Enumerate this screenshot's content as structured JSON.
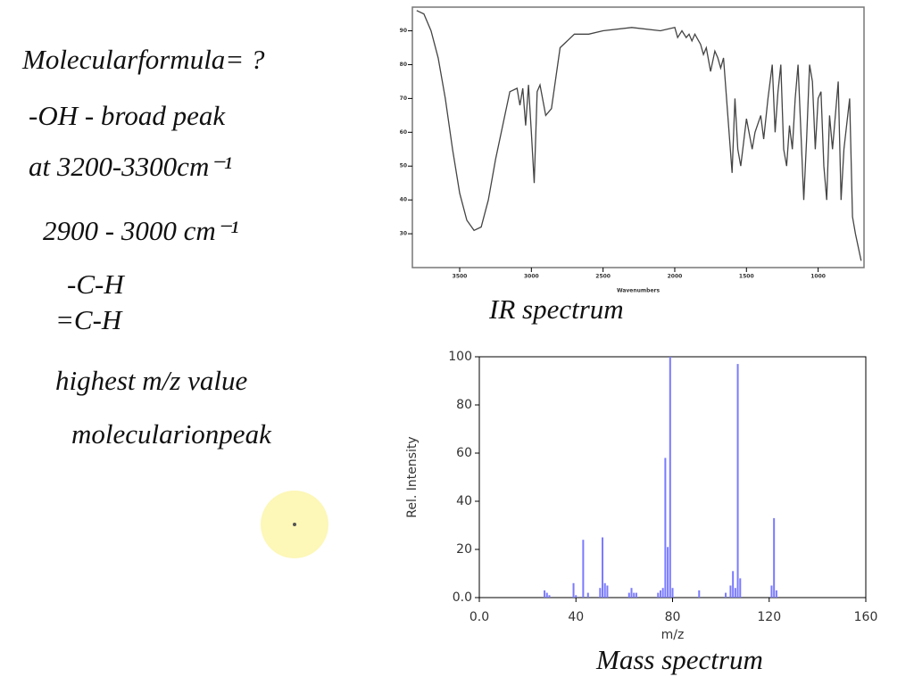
{
  "notes": [
    "Molecularformula= ?",
    "-OH - broad peak",
    "at 3200-3300cm⁻¹",
    "2900 - 3000 cm⁻¹",
    "-C-H",
    "=C-H",
    "highest m/z value",
    "molecularionpeak"
  ],
  "chart_data": [
    {
      "type": "line",
      "caption": "IR spectrum",
      "x_label": "Wavenumbers",
      "color": "#444444",
      "x": [
        3800,
        3750,
        3700,
        3650,
        3600,
        3550,
        3500,
        3450,
        3400,
        3350,
        3300,
        3250,
        3200,
        3150,
        3100,
        3080,
        3060,
        3040,
        3020,
        3000,
        2980,
        2960,
        2940,
        2900,
        2860,
        2800,
        2700,
        2600,
        2500,
        2300,
        2100,
        2000,
        1980,
        1950,
        1920,
        1900,
        1880,
        1860,
        1820,
        1800,
        1780,
        1750,
        1720,
        1700,
        1680,
        1660,
        1600,
        1580,
        1560,
        1540,
        1500,
        1460,
        1440,
        1400,
        1380,
        1350,
        1320,
        1300,
        1280,
        1260,
        1240,
        1220,
        1200,
        1180,
        1160,
        1140,
        1120,
        1100,
        1080,
        1060,
        1040,
        1020,
        1000,
        980,
        960,
        940,
        920,
        900,
        860,
        840,
        820,
        780,
        760,
        740,
        700
      ],
      "values": [
        96,
        95,
        90,
        82,
        70,
        55,
        42,
        34,
        31,
        32,
        40,
        52,
        62,
        72,
        73,
        68,
        73,
        62,
        74,
        60,
        45,
        72,
        74,
        65,
        67,
        85,
        89,
        89,
        90,
        91,
        90,
        91,
        88,
        90,
        88,
        89,
        87,
        89,
        86,
        83,
        85,
        78,
        84,
        82,
        79,
        82,
        48,
        70,
        55,
        50,
        64,
        55,
        60,
        65,
        58,
        70,
        80,
        60,
        72,
        80,
        55,
        50,
        62,
        55,
        70,
        80,
        60,
        40,
        58,
        80,
        75,
        55,
        70,
        72,
        50,
        40,
        65,
        55,
        75,
        40,
        55,
        70,
        35,
        30,
        22
      ],
      "xlim": [
        3830,
        680
      ],
      "xticks": [
        3500,
        3000,
        2500,
        2000,
        1500,
        1000
      ],
      "ylim": [
        20,
        97
      ],
      "yticks": [
        30,
        40,
        50,
        60,
        70,
        80,
        90
      ]
    },
    {
      "type": "bar",
      "caption": "Mass spectrum",
      "x_label": "m/z",
      "y_label": "Rel. Intensity",
      "color": "#7a7aff",
      "x": [
        27,
        28,
        29,
        39,
        40,
        43,
        45,
        50,
        51,
        52,
        53,
        62,
        63,
        64,
        65,
        74,
        75,
        76,
        77,
        78,
        79,
        80,
        91,
        102,
        104,
        105,
        106,
        107,
        108,
        121,
        122,
        123
      ],
      "values": [
        3,
        2,
        1,
        6,
        1,
        24,
        2,
        4,
        25,
        6,
        5,
        2,
        4,
        2,
        2,
        2,
        3,
        4,
        58,
        21,
        100,
        4,
        3,
        2,
        5,
        11,
        4,
        97,
        8,
        5,
        33,
        3
      ],
      "xlim": [
        0,
        160
      ],
      "xticks": [
        {
          "value": 0,
          "label": "0.0"
        },
        40,
        80,
        120,
        160
      ],
      "ylim": [
        0,
        100
      ],
      "yticks": [
        {
          "value": 0,
          "label": "0.0"
        },
        20,
        40,
        60,
        80,
        100
      ]
    }
  ]
}
